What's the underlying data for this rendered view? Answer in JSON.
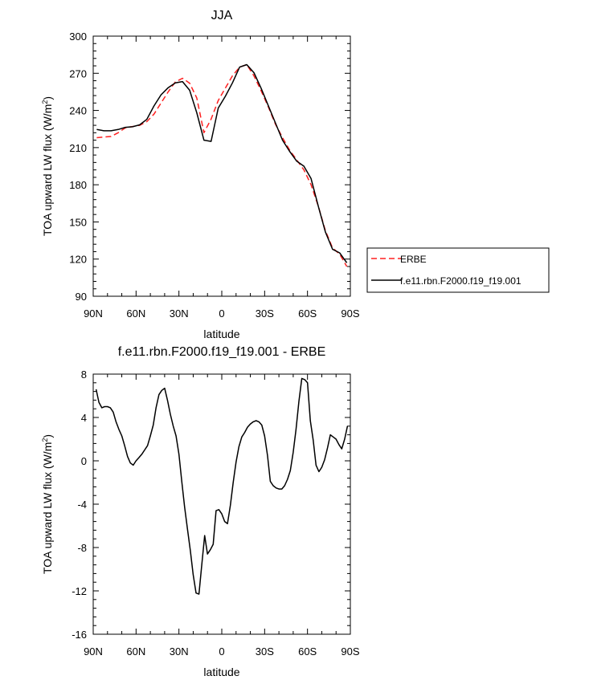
{
  "chart_data": [
    {
      "type": "line",
      "title": "JJA",
      "xlabel": "latitude",
      "ylabel_main": "TOA upward LW flux (W/m",
      "ylabel_sup": "2",
      "ylabel_tail": ")",
      "xlim": [
        90,
        -90
      ],
      "ylim": [
        90,
        300
      ],
      "xticks": [
        90,
        60,
        30,
        0,
        -30,
        -60,
        -90
      ],
      "xtick_labels": [
        "90N",
        "60N",
        "30N",
        "0",
        "30S",
        "60S",
        "90S"
      ],
      "yticks": [
        90,
        120,
        150,
        180,
        210,
        240,
        270,
        300
      ],
      "ytick_labels": [
        "90",
        "120",
        "150",
        "180",
        "210",
        "240",
        "270",
        "300"
      ],
      "legend_position": "right",
      "series": [
        {
          "name": "ERBE",
          "color": "#ff2020",
          "style": "dashed",
          "x": [
            87.5,
            82.5,
            77.5,
            72.5,
            67.5,
            62.5,
            57.5,
            52.5,
            47.5,
            42.5,
            37.5,
            32.5,
            27.5,
            22.5,
            17.5,
            12.5,
            7.5,
            2.5,
            -2.5,
            -7.5,
            -12.5,
            -17.5,
            -22.5,
            -27.5,
            -32.5,
            -37.5,
            -42.5,
            -47.5,
            -52.5,
            -57.5,
            -62.5,
            -67.5,
            -72.5,
            -77.5,
            -82.5,
            -87.5
          ],
          "y": [
            218,
            218.5,
            219,
            222,
            226,
            227,
            228,
            231,
            237,
            246,
            255,
            263,
            266,
            262,
            250,
            222,
            233,
            248,
            258,
            268,
            275,
            277,
            268,
            256,
            243,
            229,
            218,
            208,
            200,
            192,
            180,
            163,
            143,
            129,
            124,
            114
          ]
        },
        {
          "name": "f.e11.rbn.F2000.f19_f19.001",
          "color": "#000000",
          "style": "solid",
          "x": [
            87.5,
            82.5,
            77.5,
            72.5,
            67.5,
            62.5,
            57.5,
            52.5,
            47.5,
            42.5,
            37.5,
            32.5,
            27.5,
            22.5,
            17.5,
            12.5,
            7.5,
            2.5,
            -2.5,
            -7.5,
            -12.5,
            -17.5,
            -22.5,
            -27.5,
            -32.5,
            -37.5,
            -42.5,
            -47.5,
            -52.5,
            -57.5,
            -62.5,
            -67.5,
            -72.5,
            -77.5,
            -82.5,
            -87.5
          ],
          "y": [
            224.6,
            223.6,
            223.6,
            224.6,
            226.4,
            226.8,
            228.4,
            232.8,
            243.6,
            252.6,
            258.4,
            262.3,
            263.3,
            256.3,
            238.1,
            216,
            215,
            241.9,
            251.4,
            262.3,
            275,
            277,
            270.5,
            258,
            244,
            230,
            216,
            207,
            199,
            195,
            185,
            163,
            142,
            128,
            125,
            117
          ]
        }
      ]
    },
    {
      "type": "line",
      "title": "f.e11.rbn.F2000.f19_f19.001 - ERBE",
      "xlabel": "latitude",
      "ylabel_main": "TOA upward LW flux (W/m",
      "ylabel_sup": "2",
      "ylabel_tail": ")",
      "xlim": [
        90,
        -90
      ],
      "ylim": [
        -16,
        8
      ],
      "xticks": [
        90,
        60,
        30,
        0,
        -30,
        -60,
        -90
      ],
      "xtick_labels": [
        "90N",
        "60N",
        "30N",
        "0",
        "30S",
        "60S",
        "90S"
      ],
      "yticks": [
        -16,
        -12,
        -8,
        -4,
        0,
        4,
        8
      ],
      "ytick_labels": [
        "-16",
        "-12",
        "-8",
        "-4",
        "0",
        "4",
        "8"
      ],
      "series": [
        {
          "color": "#000000",
          "style": "solid",
          "x": [
            88,
            86,
            84,
            82,
            80,
            78,
            76,
            74,
            72,
            70,
            68,
            66,
            64,
            62,
            60,
            58,
            56,
            54,
            52,
            50,
            48,
            46,
            44,
            42,
            40,
            38,
            36,
            34,
            32,
            30,
            28,
            26,
            24,
            22,
            20,
            18,
            16,
            14,
            12,
            10,
            8,
            6,
            4,
            2,
            0,
            -2,
            -4,
            -6,
            -8,
            -10,
            -12,
            -14,
            -16,
            -18,
            -20,
            -22,
            -24,
            -26,
            -28,
            -30,
            -32,
            -34,
            -36,
            -38,
            -40,
            -42,
            -44,
            -46,
            -48,
            -50,
            -52,
            -54,
            -56,
            -58,
            -60,
            -62,
            -64,
            -66,
            -68,
            -70,
            -72,
            -74,
            -76,
            -78,
            -80,
            -82,
            -84,
            -86,
            -88
          ],
          "y": [
            6.6,
            5.4,
            4.9,
            5.0,
            5.0,
            4.9,
            4.5,
            3.6,
            2.9,
            2.3,
            1.4,
            0.4,
            -0.2,
            -0.4,
            0.0,
            0.3,
            0.6,
            1.0,
            1.4,
            2.3,
            3.3,
            4.9,
            6.1,
            6.5,
            6.7,
            5.6,
            4.3,
            3.2,
            2.3,
            0.6,
            -1.9,
            -4.3,
            -6.3,
            -8.3,
            -10.5,
            -12.2,
            -12.3,
            -9.6,
            -6.9,
            -8.6,
            -8.2,
            -7.7,
            -4.6,
            -4.5,
            -4.9,
            -5.6,
            -5.8,
            -4.1,
            -2.0,
            -0.1,
            1.3,
            2.2,
            2.6,
            3.1,
            3.4,
            3.6,
            3.7,
            3.6,
            3.3,
            2.3,
            0.5,
            -1.9,
            -2.3,
            -2.5,
            -2.6,
            -2.6,
            -2.3,
            -1.7,
            -0.9,
            0.8,
            2.9,
            5.5,
            7.6,
            7.5,
            7.2,
            3.7,
            1.9,
            -0.4,
            -1.0,
            -0.6,
            0.1,
            1.2,
            2.4,
            2.2,
            2.0,
            1.5,
            1.1,
            2.0,
            3.2
          ]
        }
      ]
    }
  ]
}
